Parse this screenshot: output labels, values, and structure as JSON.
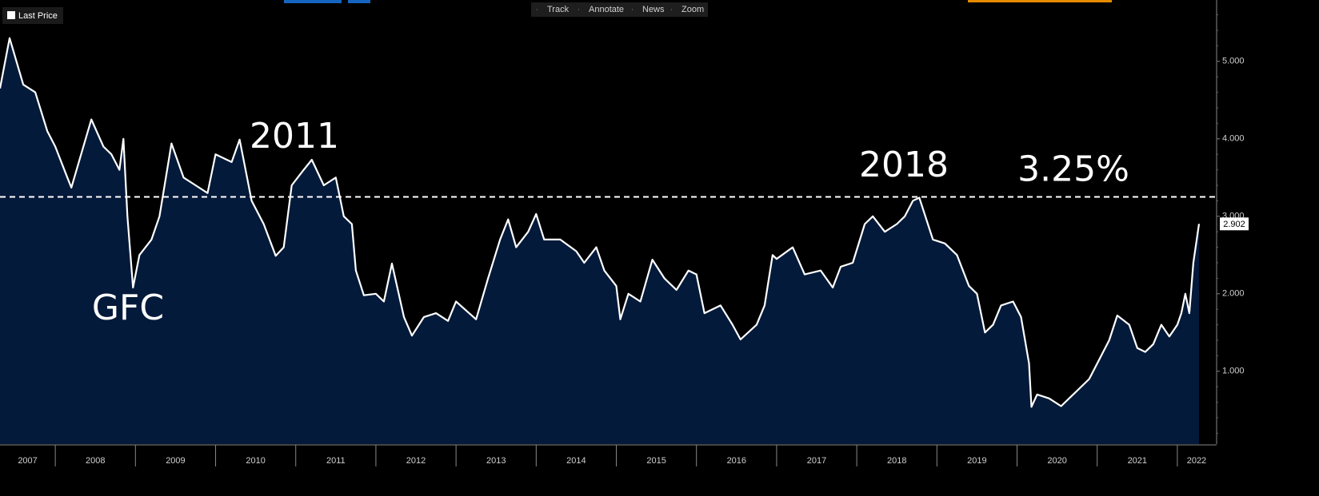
{
  "chart_data": {
    "type": "area",
    "toolbar": [
      "Track",
      "Annotate",
      "News",
      "Zoom"
    ],
    "annotations": [
      "GFC",
      "2011",
      "2018"
    ],
    "reference_line": {
      "value": 3.25,
      "label": "3.25%"
    },
    "series": [
      {
        "name": "Last Price",
        "color": "#ffffff",
        "fill": "#041a3a",
        "x": [
          2007.31,
          2007.43,
          2007.6,
          2007.75,
          2007.9,
          2008.0,
          2008.15,
          2008.2,
          2008.45,
          2008.6,
          2008.7,
          2008.8,
          2008.85,
          2008.9,
          2008.97,
          2009.05,
          2009.2,
          2009.3,
          2009.45,
          2009.6,
          2009.75,
          2009.9,
          2010.0,
          2010.2,
          2010.3,
          2010.45,
          2010.6,
          2010.75,
          2010.85,
          2010.95,
          2011.1,
          2011.2,
          2011.35,
          2011.5,
          2011.6,
          2011.7,
          2011.75,
          2011.85,
          2012.0,
          2012.1,
          2012.2,
          2012.35,
          2012.45,
          2012.6,
          2012.75,
          2012.9,
          2013.0,
          2013.25,
          2013.4,
          2013.55,
          2013.65,
          2013.75,
          2013.9,
          2014.0,
          2014.1,
          2014.3,
          2014.5,
          2014.6,
          2014.75,
          2014.85,
          2015.0,
          2015.05,
          2015.15,
          2015.3,
          2015.45,
          2015.6,
          2015.75,
          2015.9,
          2016.0,
          2016.1,
          2016.3,
          2016.45,
          2016.55,
          2016.75,
          2016.85,
          2016.95,
          2017.0,
          2017.2,
          2017.35,
          2017.55,
          2017.7,
          2017.8,
          2017.95,
          2018.1,
          2018.2,
          2018.35,
          2018.5,
          2018.6,
          2018.7,
          2018.78,
          2018.95,
          2019.1,
          2019.25,
          2019.4,
          2019.5,
          2019.6,
          2019.7,
          2019.8,
          2019.95,
          2020.05,
          2020.15,
          2020.18,
          2020.25,
          2020.4,
          2020.55,
          2020.6,
          2020.75,
          2020.9,
          2021.0,
          2021.15,
          2021.25,
          2021.4,
          2021.5,
          2021.6,
          2021.7,
          2021.8,
          2021.9,
          2022.0,
          2022.05,
          2022.1,
          2022.15,
          2022.2,
          2022.27
        ],
        "values": [
          4.65,
          5.3,
          4.7,
          4.6,
          4.1,
          3.9,
          3.5,
          3.37,
          4.25,
          3.9,
          3.8,
          3.6,
          4.0,
          3.0,
          2.08,
          2.5,
          2.7,
          3.0,
          3.94,
          3.5,
          3.4,
          3.3,
          3.8,
          3.7,
          3.99,
          3.2,
          2.9,
          2.49,
          2.6,
          3.4,
          3.6,
          3.73,
          3.4,
          3.5,
          3.0,
          2.9,
          2.3,
          1.98,
          2.0,
          1.9,
          2.39,
          1.7,
          1.46,
          1.7,
          1.75,
          1.65,
          1.9,
          1.67,
          2.2,
          2.7,
          2.96,
          2.6,
          2.8,
          3.03,
          2.7,
          2.7,
          2.55,
          2.4,
          2.6,
          2.3,
          2.1,
          1.67,
          2.0,
          1.9,
          2.44,
          2.2,
          2.05,
          2.3,
          2.25,
          1.75,
          1.85,
          1.6,
          1.41,
          1.6,
          1.85,
          2.5,
          2.45,
          2.6,
          2.25,
          2.3,
          2.08,
          2.35,
          2.4,
          2.9,
          3.0,
          2.8,
          2.9,
          3.0,
          3.2,
          3.24,
          2.7,
          2.65,
          2.5,
          2.1,
          2.0,
          1.5,
          1.6,
          1.85,
          1.9,
          1.7,
          1.1,
          0.54,
          0.7,
          0.65,
          0.55,
          0.6,
          0.75,
          0.9,
          1.1,
          1.4,
          1.72,
          1.6,
          1.3,
          1.25,
          1.35,
          1.6,
          1.45,
          1.6,
          1.75,
          2.0,
          1.75,
          2.4,
          2.902
        ]
      }
    ],
    "xlim": [
      2007.31,
      2022.48
    ],
    "xticks": [
      2007,
      2008,
      2009,
      2010,
      2011,
      2012,
      2013,
      2014,
      2015,
      2016,
      2017,
      2018,
      2019,
      2020,
      2021,
      2022
    ],
    "ylim": [
      0.06,
      5.74
    ],
    "yticks": [
      {
        "value": 1,
        "label": "1.000"
      },
      {
        "value": 2,
        "label": "2.000"
      },
      {
        "value": 3,
        "label": "3.000"
      },
      {
        "value": 4,
        "label": "4.000"
      },
      {
        "value": 5,
        "label": "5.000"
      }
    ]
  }
}
